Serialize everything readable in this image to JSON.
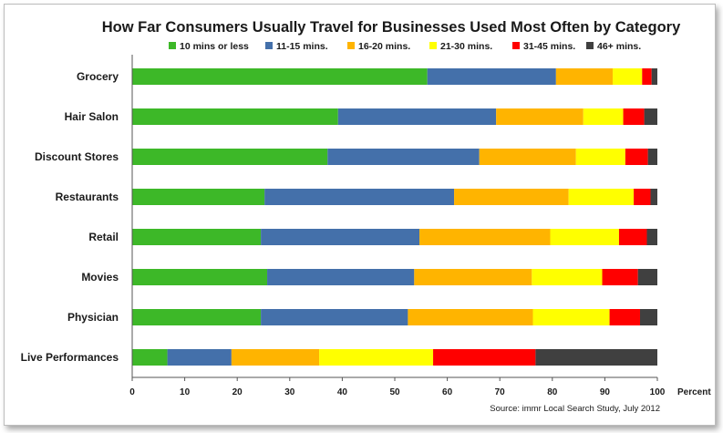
{
  "chart_data": {
    "type": "bar",
    "orientation": "horizontal",
    "stacked": true,
    "title": "How Far Consumers Usually Travel for Businesses Used Most Often by Category",
    "xlabel": "Percent",
    "ylabel": "",
    "xlim": [
      0,
      100
    ],
    "x_ticks": [
      "0",
      "10",
      "20",
      "30",
      "40",
      "50",
      "60",
      "70",
      "80",
      "90",
      "100"
    ],
    "grid": false,
    "legend_position": "top",
    "source": "Source:  immr Local Search Study, July 2012",
    "categories": [
      "Grocery",
      "Hair Salon",
      "Discount Stores",
      "Restaurants",
      "Retail",
      "Movies",
      "Physician",
      "Live Performances"
    ],
    "series": [
      {
        "name": "10 mins or less",
        "color": "#3db828",
        "values": [
          56.2,
          39.2,
          37.2,
          25.2,
          24.5,
          25.7,
          24.5,
          6.7
        ]
      },
      {
        "name": "11-15 mins.",
        "color": "#4470aa",
        "values": [
          24.5,
          30.1,
          28.9,
          36.1,
          30.2,
          28.0,
          28.0,
          12.2
        ]
      },
      {
        "name": "16-20 mins.",
        "color": "#ffb400",
        "values": [
          10.8,
          16.6,
          18.4,
          21.8,
          24.9,
          22.4,
          23.8,
          16.7
        ]
      },
      {
        "name": "21-30 mins.",
        "color": "#ffff00",
        "values": [
          5.6,
          7.6,
          9.4,
          12.4,
          13.1,
          13.4,
          14.6,
          21.7
        ]
      },
      {
        "name": "31-45 mins.",
        "color": "#ff0000",
        "values": [
          1.8,
          4.0,
          4.3,
          3.2,
          5.3,
          6.8,
          5.8,
          19.5
        ]
      },
      {
        "name": "46+ mins.",
        "color": "#404040",
        "values": [
          1.1,
          2.5,
          1.8,
          1.3,
          2.0,
          3.7,
          3.3,
          23.2
        ]
      }
    ]
  }
}
